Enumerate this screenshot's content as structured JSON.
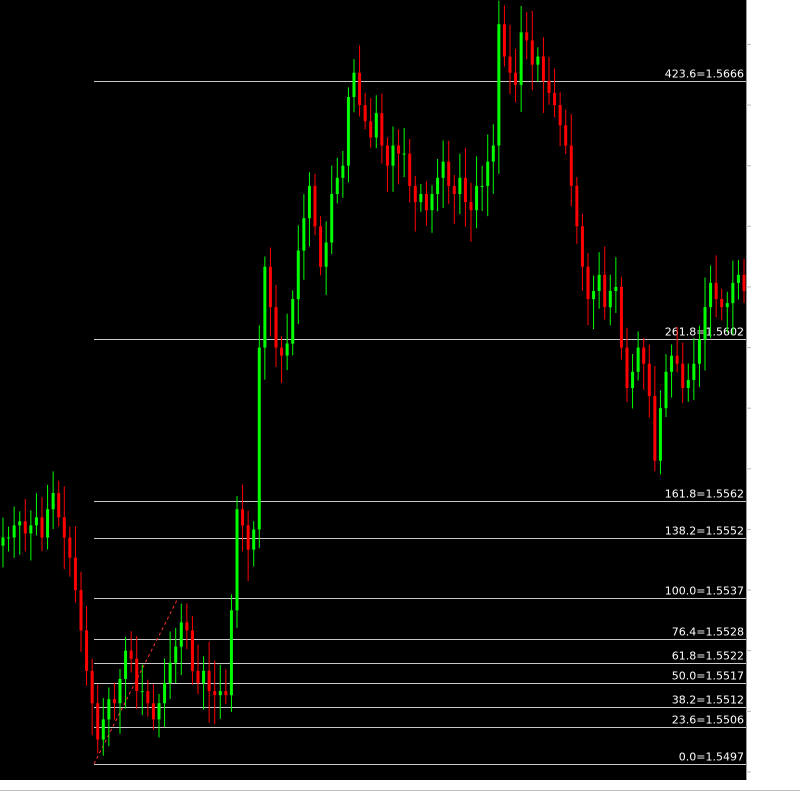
{
  "chart_data": {
    "type": "candlestick",
    "title": "",
    "xlabel": "",
    "ylabel": "",
    "ylim": [
      1.5493,
      1.5686
    ],
    "y_ticks": [
      "1.5675",
      "1.5660",
      "1.5645",
      "1.5630",
      "1.5615",
      "1.5600",
      "1.5585",
      "1.5570",
      "1.5555",
      "1.5540",
      "1.5525",
      "1.5510",
      "1.5495"
    ],
    "y_tick_values": [
      1.5675,
      1.566,
      1.5645,
      1.563,
      1.5615,
      1.56,
      1.5585,
      1.557,
      1.5555,
      1.554,
      1.5525,
      1.551,
      1.5495
    ],
    "fib_levels": [
      {
        "label": "423.6=1.5666",
        "price": 1.5666
      },
      {
        "label": "261.8=1.5602",
        "price": 1.5602
      },
      {
        "label": "161.8=1.5562",
        "price": 1.5562
      },
      {
        "label": "138.2=1.5552",
        "price": 1.5553
      },
      {
        "label": "100.0=1.5537",
        "price": 1.5538
      },
      {
        "label": "76.4=1.5528",
        "price": 1.5528
      },
      {
        "label": "61.8=1.5522",
        "price": 1.5522
      },
      {
        "label": "50.0=1.5517",
        "price": 1.5517
      },
      {
        "label": "38.2=1.5512",
        "price": 1.5511
      },
      {
        "label": "23.6=1.5506",
        "price": 1.5506
      },
      {
        "label": "0.0=1.5497",
        "price": 1.5497
      }
    ],
    "trend_line": {
      "from": [
        1.5497
      ],
      "to": [
        1.5538
      ]
    },
    "grid": false,
    "colors": {
      "background": "#000000",
      "bull": "#00ff00",
      "bear": "#ff0000",
      "levels": "#c8c8c8",
      "axis_text": "#ffffff"
    },
    "closes": [
      1.5553,
      1.5553,
      1.5556,
      1.5557,
      1.5554,
      1.5556,
      1.5558,
      1.5553,
      1.556,
      1.5564,
      1.5558,
      1.5553,
      1.5548,
      1.554,
      1.553,
      1.552,
      1.5512,
      1.5503,
      1.5508,
      1.5513,
      1.5512,
      1.5518,
      1.5525,
      1.5523,
      1.5515,
      1.5515,
      1.5512,
      1.5508,
      1.5512,
      1.5517,
      1.5522,
      1.5526,
      1.5532,
      1.553,
      1.552,
      1.5517,
      1.552,
      1.5515,
      1.5514,
      1.5515,
      1.5514,
      1.5535,
      1.556,
      1.5556,
      1.555,
      1.5555,
      1.56,
      1.562,
      1.561,
      1.56,
      1.5598,
      1.5601,
      1.5612,
      1.5624,
      1.5632,
      1.564,
      1.563,
      1.562,
      1.5626,
      1.5638,
      1.5642,
      1.5645,
      1.5662,
      1.5668,
      1.566,
      1.5656,
      1.5652,
      1.5658,
      1.565,
      1.5645,
      1.565,
      1.5648,
      1.5648,
      1.564,
      1.5636,
      1.5638,
      1.5634,
      1.5638,
      1.5642,
      1.5646,
      1.564,
      1.5638,
      1.5642,
      1.5636,
      1.5634,
      1.564,
      1.564,
      1.5646,
      1.565,
      1.568,
      1.5672,
      1.5668,
      1.5665,
      1.5678,
      1.5676,
      1.567,
      1.5672,
      1.5666,
      1.5663,
      1.566,
      1.5655,
      1.565,
      1.564,
      1.563,
      1.562,
      1.5612,
      1.5614,
      1.5618,
      1.561,
      1.5614,
      1.5615,
      1.56,
      1.559,
      1.5594,
      1.56,
      1.5596,
      1.5588,
      1.5572,
      1.5585,
      1.5594,
      1.5598,
      1.5596,
      1.559,
      1.5592,
      1.5596,
      1.5602,
      1.561,
      1.5616,
      1.5612,
      1.561,
      1.5611,
      1.5616,
      1.5618,
      1.5614
    ]
  }
}
